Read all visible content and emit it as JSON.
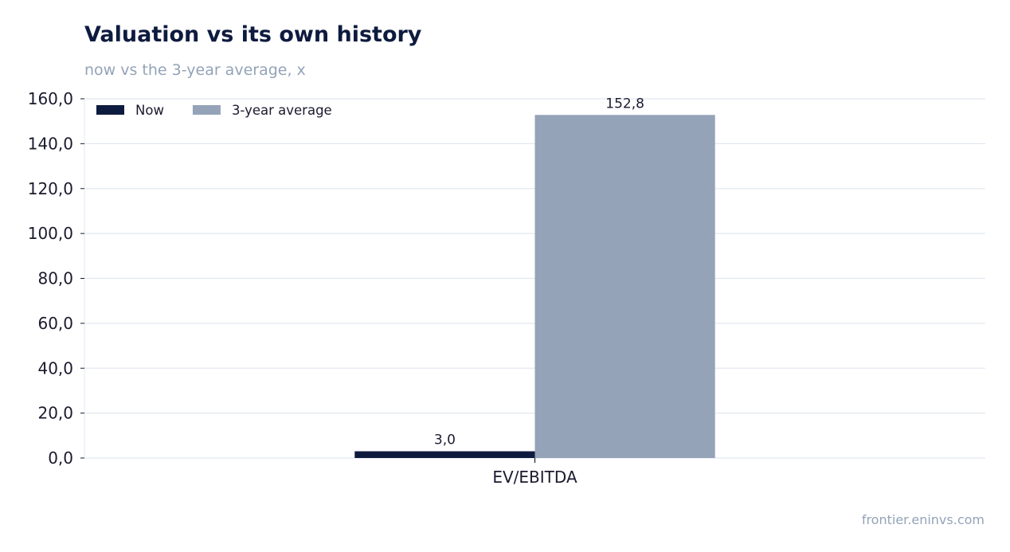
{
  "chart_data": {
    "type": "bar",
    "title": "Valuation vs its own history",
    "subtitle": "now vs the 3-year average, x",
    "categories": [
      "EV/EBITDA"
    ],
    "series": [
      {
        "name": "Now",
        "values": [
          3.0
        ],
        "value_labels": [
          "3,0"
        ],
        "color": "#0d1b3e"
      },
      {
        "name": "3-year average",
        "values": [
          152.8
        ],
        "value_labels": [
          "152,8"
        ],
        "color": "#94a3b8"
      }
    ],
    "ylim": [
      0,
      160
    ],
    "yticks": [
      0,
      20,
      40,
      60,
      80,
      100,
      120,
      140,
      160
    ],
    "ytick_labels": [
      "0,0",
      "20,0",
      "40,0",
      "60,0",
      "80,0",
      "100,0",
      "120,0",
      "140,0",
      "160,0"
    ],
    "xlabel": "",
    "ylabel": "",
    "grid": true,
    "legend_position": "top-left"
  },
  "footer": {
    "source": "frontier.eninvs.com"
  },
  "colors": {
    "title": "#0d1b3e",
    "muted": "#94a3b8",
    "grid": "#e2e8f0",
    "axis_text": "#1a1a2e"
  }
}
